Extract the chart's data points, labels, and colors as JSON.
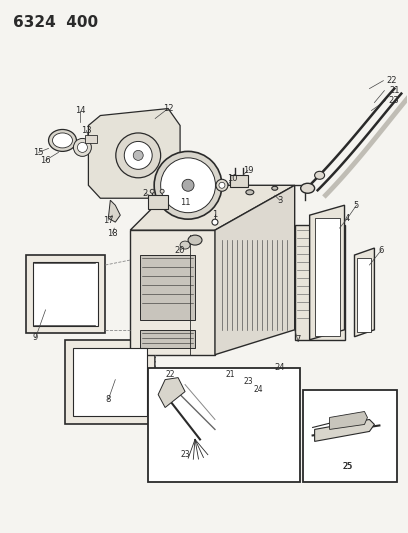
{
  "title": "6324  400",
  "bg_color": "#f5f4f0",
  "line_color": "#2a2a2a",
  "figsize": [
    4.08,
    5.33
  ],
  "dpi": 100,
  "title_fontsize": 11,
  "title_fontweight": "bold",
  "label_fontsize": 5.5
}
